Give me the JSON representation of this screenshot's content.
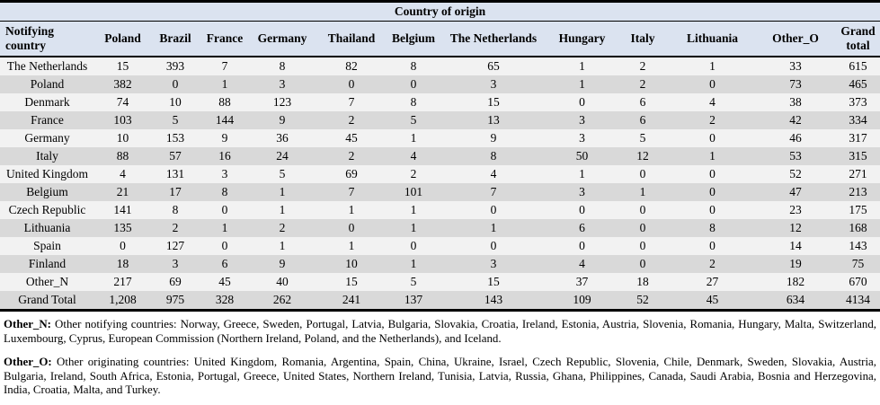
{
  "table": {
    "title": "Country of origin",
    "row_header": "Notifying country",
    "columns": [
      "Poland",
      "Brazil",
      "France",
      "Germany",
      "Thailand",
      "Belgium",
      "The Netherlands",
      "Hungary",
      "Italy",
      "Lithuania",
      "Other_O",
      "Grand total"
    ],
    "rows": [
      {
        "label": "The Netherlands",
        "values": [
          "15",
          "393",
          "7",
          "8",
          "82",
          "8",
          "65",
          "1",
          "2",
          "1",
          "33",
          "615"
        ]
      },
      {
        "label": "Poland",
        "values": [
          "382",
          "0",
          "1",
          "3",
          "0",
          "0",
          "3",
          "1",
          "2",
          "0",
          "73",
          "465"
        ]
      },
      {
        "label": "Denmark",
        "values": [
          "74",
          "10",
          "88",
          "123",
          "7",
          "8",
          "15",
          "0",
          "6",
          "4",
          "38",
          "373"
        ]
      },
      {
        "label": "France",
        "values": [
          "103",
          "5",
          "144",
          "9",
          "2",
          "5",
          "13",
          "3",
          "6",
          "2",
          "42",
          "334"
        ]
      },
      {
        "label": "Germany",
        "values": [
          "10",
          "153",
          "9",
          "36",
          "45",
          "1",
          "9",
          "3",
          "5",
          "0",
          "46",
          "317"
        ]
      },
      {
        "label": "Italy",
        "values": [
          "88",
          "57",
          "16",
          "24",
          "2",
          "4",
          "8",
          "50",
          "12",
          "1",
          "53",
          "315"
        ]
      },
      {
        "label": "United Kingdom",
        "values": [
          "4",
          "131",
          "3",
          "5",
          "69",
          "2",
          "4",
          "1",
          "0",
          "0",
          "52",
          "271"
        ]
      },
      {
        "label": "Belgium",
        "values": [
          "21",
          "17",
          "8",
          "1",
          "7",
          "101",
          "7",
          "3",
          "1",
          "0",
          "47",
          "213"
        ]
      },
      {
        "label": "Czech Republic",
        "values": [
          "141",
          "8",
          "0",
          "1",
          "1",
          "1",
          "0",
          "0",
          "0",
          "0",
          "23",
          "175"
        ]
      },
      {
        "label": "Lithuania",
        "values": [
          "135",
          "2",
          "1",
          "2",
          "0",
          "1",
          "1",
          "6",
          "0",
          "8",
          "12",
          "168"
        ]
      },
      {
        "label": "Spain",
        "values": [
          "0",
          "127",
          "0",
          "1",
          "1",
          "0",
          "0",
          "0",
          "0",
          "0",
          "14",
          "143"
        ]
      },
      {
        "label": "Finland",
        "values": [
          "18",
          "3",
          "6",
          "9",
          "10",
          "1",
          "3",
          "4",
          "0",
          "2",
          "19",
          "75"
        ]
      },
      {
        "label": "Other_N",
        "values": [
          "217",
          "69",
          "45",
          "40",
          "15",
          "5",
          "15",
          "37",
          "18",
          "27",
          "182",
          "670"
        ]
      },
      {
        "label": "Grand Total",
        "values": [
          "1,208",
          "975",
          "328",
          "262",
          "241",
          "137",
          "143",
          "109",
          "52",
          "45",
          "634",
          "4134"
        ]
      }
    ]
  },
  "footnotes": [
    {
      "label": "Other_N:",
      "text": "Other notifying countries: Norway, Greece, Sweden, Portugal, Latvia, Bulgaria, Slovakia, Croatia, Ireland, Estonia, Austria, Slovenia, Romania, Hungary, Malta, Switzerland, Luxembourg, Cyprus, European Commission (Northern Ireland, Poland, and the Netherlands), and Iceland."
    },
    {
      "label": "Other_O:",
      "text": "Other originating countries: United Kingdom, Romania, Argentina, Spain, China, Ukraine, Israel, Czech Republic, Slovenia, Chile, Denmark, Sweden, Slovakia, Austria, Bulgaria, Ireland, South Africa, Estonia, Portugal, Greece, United States, Northern Ireland, Tunisia, Latvia, Russia, Ghana, Philippines, Canada, Saudi Arabia, Bosnia and Herzegovina, India, Croatia, Malta, and Turkey."
    }
  ],
  "colors": {
    "header_bg": "#dbe3f0",
    "row_light": "#f2f2f2",
    "row_shade": "#d9d9d9",
    "border": "#000000"
  }
}
